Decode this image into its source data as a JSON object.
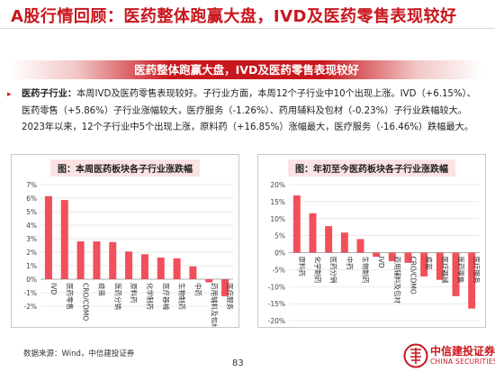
{
  "page": {
    "title": "A股行情回顾：医药整体跑赢大盘，IVD及医药零售表现较好",
    "banner": "医药整体跑赢大盘，IVD及医药零售表现较好",
    "paragraph": {
      "lead": "医药子行业：",
      "line1_rest": "本周IVD及医药零售表现较好。子行业方面，本周12个子行业中10个出现上涨。IVD（+6.15%）、",
      "line2": "医药零售（+5.86%）子行业涨幅较大，医疗服务（-1.26%）、药用辅料及包材（-0.23%）子行业跌幅较大。",
      "line3": "2023年以来，12个子行业中5个出现上涨，原料药（+16.85%）涨幅最大，医疗服务（-16.46%）跌幅最大。"
    },
    "source": "数据来源：Wind，中信建投证券",
    "page_number": "83",
    "logo": {
      "cn": "中信建投证券",
      "en": "CHINA SECURITIES"
    },
    "colors": {
      "accent": "#c8161d",
      "bar": "#f0505a",
      "banner": "#c8161d"
    }
  },
  "chart_data": [
    {
      "type": "bar",
      "title": "图：本周医药板块各子行业涨跌幅",
      "categories": [
        "IVD",
        "医药零售",
        "CRO/CDMO",
        "疫苗",
        "医药分销",
        "原料药",
        "化学制药",
        "医疗器械",
        "生物制药",
        "中药",
        "药用辅料及包材",
        "医疗服务"
      ],
      "values": [
        6.15,
        5.86,
        2.8,
        2.8,
        2.75,
        2.05,
        1.85,
        1.6,
        1.55,
        0.95,
        -0.23,
        -1.26
      ],
      "ylim": [
        -2,
        7
      ],
      "yticks": [
        "-2%",
        "-1%",
        "0%",
        "1%",
        "2%",
        "3%",
        "4%",
        "5%",
        "6%",
        "7%"
      ],
      "grid": true
    },
    {
      "type": "bar",
      "title": "图：年初至今医药板块各子行业涨跌幅",
      "categories": [
        "原料药",
        "化学制药",
        "医药分销",
        "中药",
        "生物制药",
        "IVD",
        "药用辅料及包材",
        "CRO/CDMO",
        "疫苗",
        "医疗器械",
        "医药零售",
        "医疗服务"
      ],
      "values": [
        16.85,
        11.6,
        7.8,
        5.9,
        4.0,
        -1.2,
        -2.5,
        -3.0,
        -7.0,
        -8.0,
        -12.8,
        -16.46
      ],
      "ylim": [
        -20,
        20
      ],
      "yticks": [
        "-20%",
        "-15%",
        "-10%",
        "-5%",
        "0%",
        "5%",
        "10%",
        "15%",
        "20%"
      ],
      "grid": true
    }
  ]
}
